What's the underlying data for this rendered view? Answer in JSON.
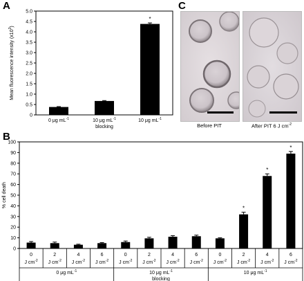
{
  "panels": {
    "a": "A",
    "b": "B",
    "c": "C"
  },
  "microscopy": {
    "before_caption": "Before PIT",
    "after_caption": "After PIT 6 J cm",
    "after_caption_sup": "-2"
  },
  "chart_data": [
    {
      "type": "bar",
      "panel": "A",
      "ylabel": "Mean fluorescence intensity (x10",
      "ylabel_sup": "3",
      "ylabel_end": ")",
      "ylim": [
        0,
        5
      ],
      "yticks": [
        "0",
        "0.5",
        "1.0",
        "1.5",
        "2.0",
        "2.5",
        "3.0",
        "3.5",
        "4.0",
        "4.5",
        "5.0"
      ],
      "categories": [
        "0 μg mL",
        "10 μg mL",
        "10 μg mL"
      ],
      "category_sup": "-1",
      "category_sub": [
        "",
        "blocking",
        ""
      ],
      "values": [
        0.38,
        0.67,
        4.38
      ],
      "errors": [
        0.02,
        0.02,
        0.05
      ],
      "significance": [
        "",
        "",
        "*"
      ],
      "bar_color": "#000000"
    },
    {
      "type": "bar",
      "panel": "B",
      "ylabel": "% cell death",
      "ylim": [
        0,
        100
      ],
      "yticks": [
        "0",
        "10",
        "20",
        "30",
        "40",
        "50",
        "60",
        "70",
        "80",
        "90",
        "100"
      ],
      "x_unit": "J cm",
      "x_unit_sup": "-2",
      "categories": [
        "0",
        "2",
        "4",
        "6",
        "0",
        "2",
        "4",
        "6",
        "0",
        "2",
        "4",
        "6"
      ],
      "values": [
        5.5,
        5.0,
        3.5,
        5.0,
        6.0,
        9.5,
        11.0,
        11.5,
        9.5,
        32.0,
        68.0,
        89.0
      ],
      "errors": [
        1.0,
        1.0,
        0.5,
        0.5,
        1.0,
        1.0,
        1.0,
        1.0,
        0.5,
        2.0,
        2.0,
        2.0
      ],
      "significance": [
        "",
        "",
        "",
        "",
        "",
        "",
        "",
        "",
        "",
        "*",
        "*",
        "*"
      ],
      "groups": [
        {
          "label": "0 μg mL",
          "sup": "-1",
          "sub": ""
        },
        {
          "label": "10 μg mL",
          "sup": "-1",
          "sub": "blocking"
        },
        {
          "label": "10 μg mL",
          "sup": "-1",
          "sub": ""
        }
      ],
      "bar_color": "#000000"
    }
  ]
}
